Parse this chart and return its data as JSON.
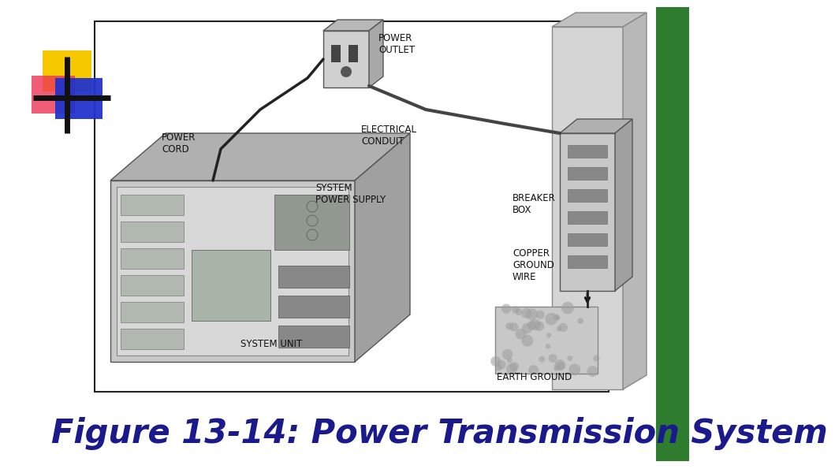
{
  "bg_color": "#ffffff",
  "slide_bg": "#ffffff",
  "title": "Figure 13-14: Power Transmission System",
  "title_color": "#1a1a8c",
  "title_fontsize": 30,
  "title_fontweight": "bold",
  "panel_bg": "#ffffff",
  "panel_border": "#000000",
  "green_border_color": "#2e7d2e",
  "logo_yellow_color": "#f5c800",
  "logo_blue_color": "#2233cc",
  "logo_red_color": "#ee3355",
  "cross_color": "#111111"
}
